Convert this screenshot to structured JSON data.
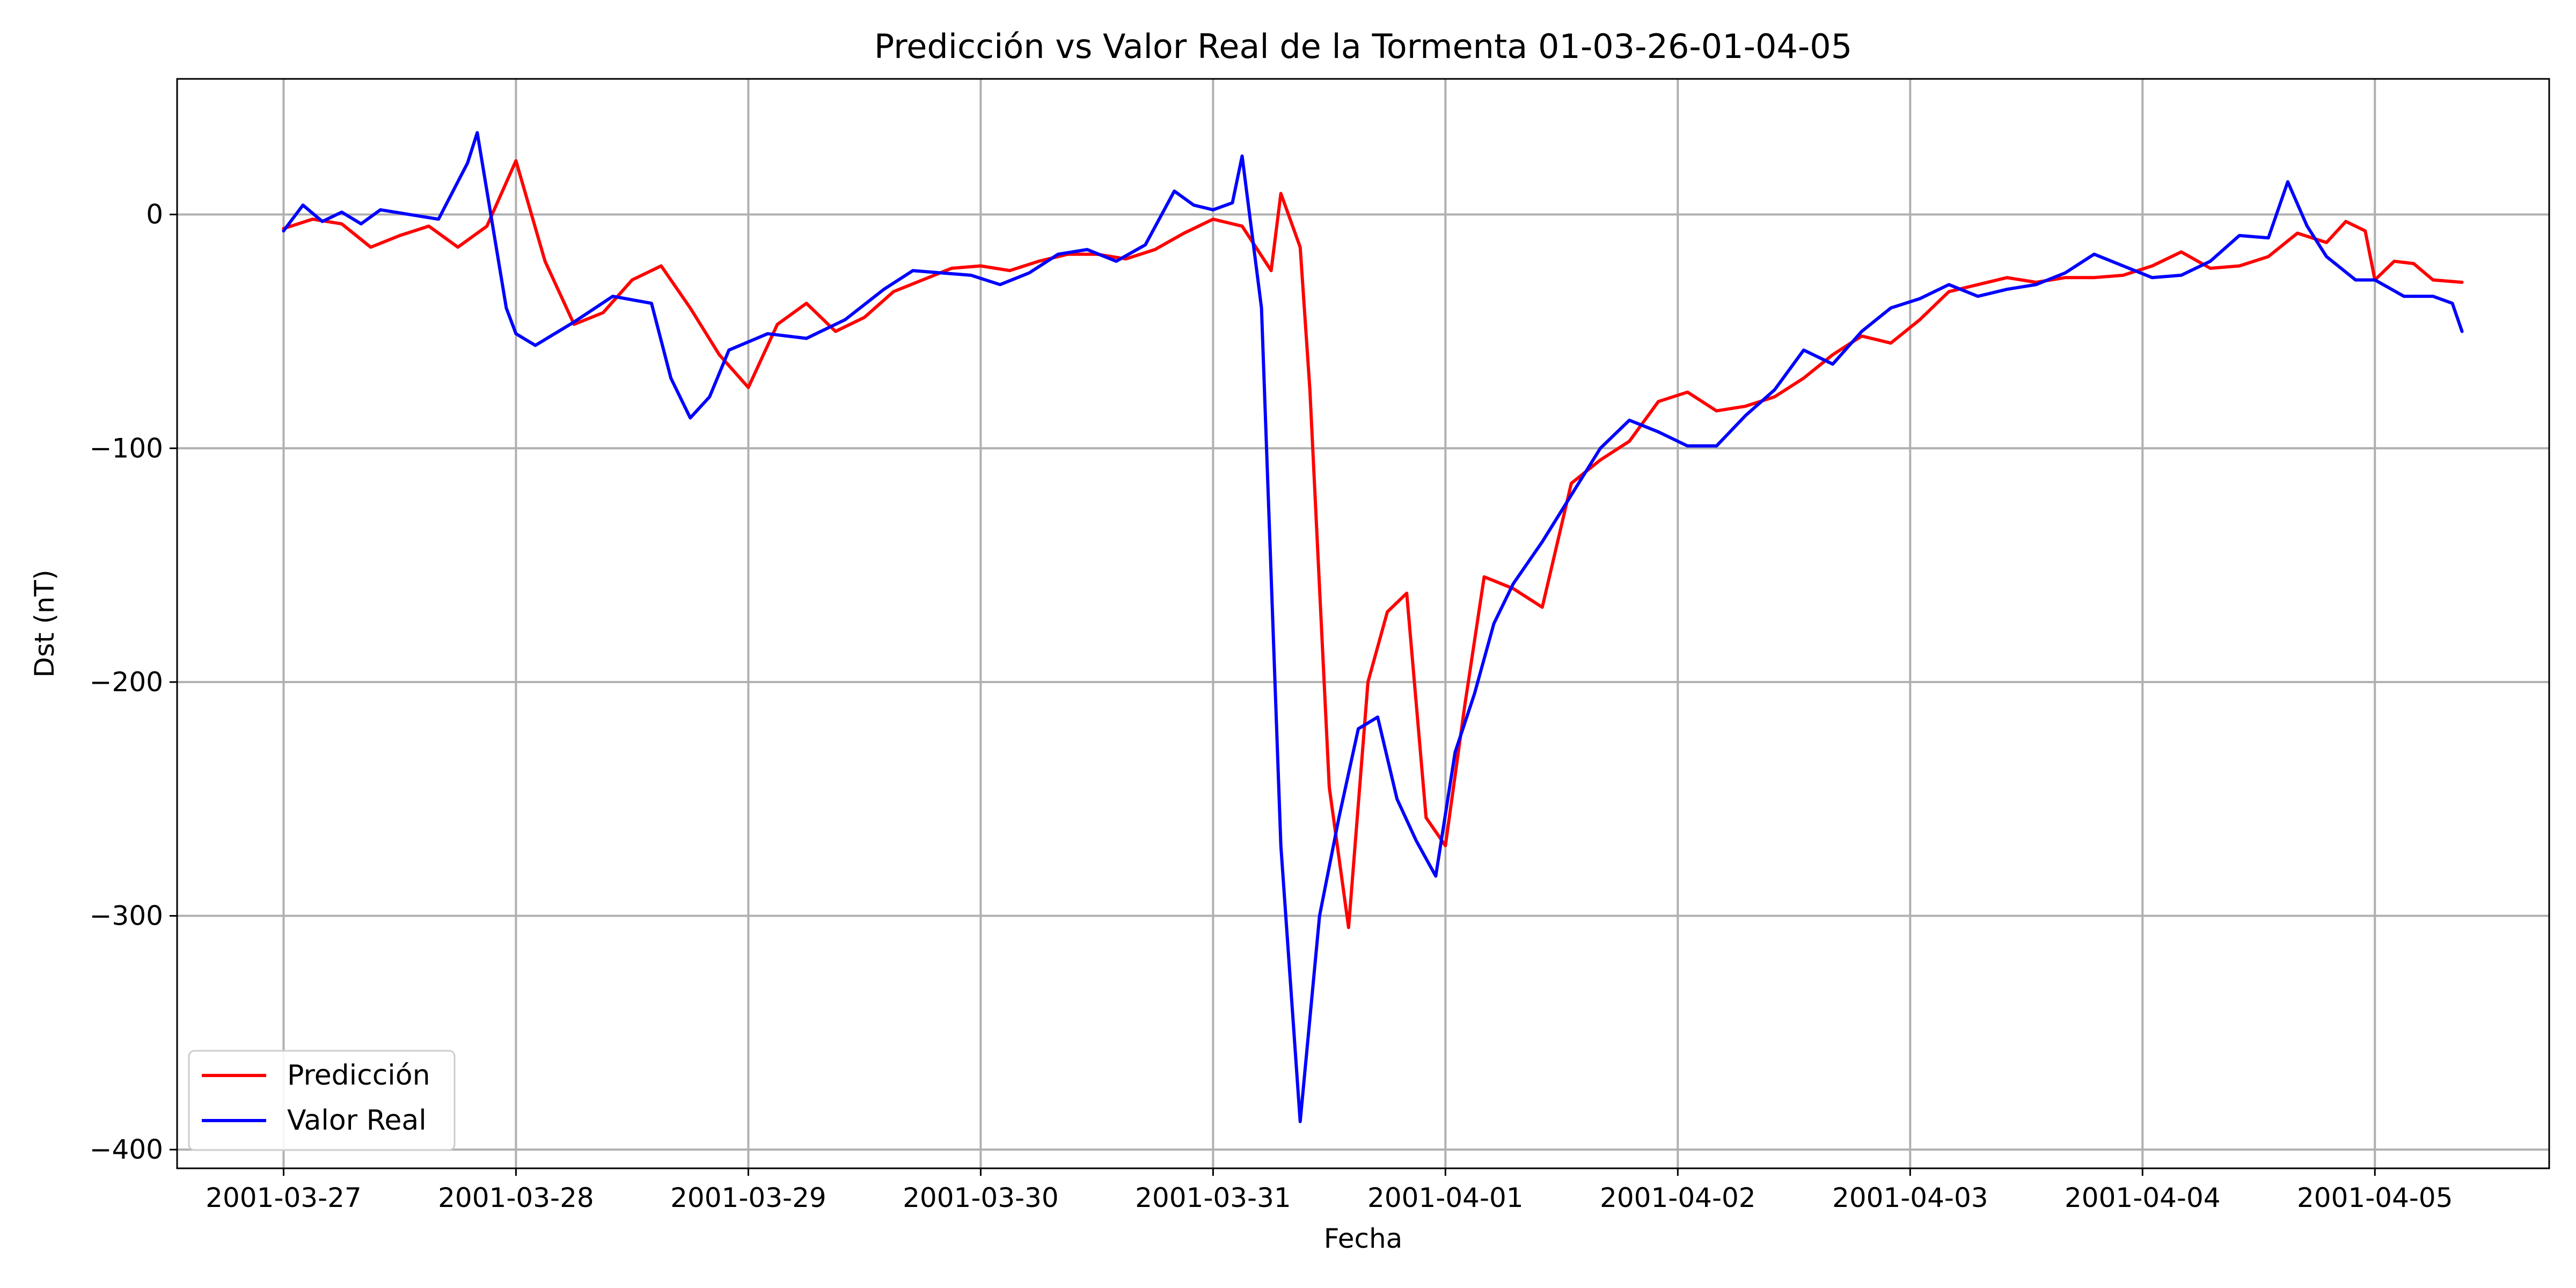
{
  "chart_data": {
    "type": "line",
    "title": "Predicción vs Valor Real de la Tormenta 01-03-26-01-04-05",
    "xlabel": "Fecha",
    "ylabel": "Dst (nT)",
    "x_ticks": [
      "2001-03-27",
      "2001-03-28",
      "2001-03-29",
      "2001-03-30",
      "2001-03-31",
      "2001-04-01",
      "2001-04-02",
      "2001-04-03",
      "2001-04-04",
      "2001-04-05"
    ],
    "y_ticks": [
      0,
      -100,
      -200,
      -300,
      -400
    ],
    "xlim": [
      "2001-03-26T13:00",
      "2001-04-05T18:00"
    ],
    "ylim": [
      -408,
      58
    ],
    "grid": true,
    "legend_position": "lower-left",
    "series": [
      {
        "name": "Predicción",
        "color": "#ff0000",
        "points": [
          [
            "2001-03-27T00:00",
            -6
          ],
          [
            "2001-03-27T03:00",
            -2
          ],
          [
            "2001-03-27T06:00",
            -4
          ],
          [
            "2001-03-27T09:00",
            -14
          ],
          [
            "2001-03-27T12:00",
            -9
          ],
          [
            "2001-03-27T15:00",
            -5
          ],
          [
            "2001-03-27T18:00",
            -14
          ],
          [
            "2001-03-27T21:00",
            -5
          ],
          [
            "2001-03-28T00:00",
            23
          ],
          [
            "2001-03-28T03:00",
            -20
          ],
          [
            "2001-03-28T06:00",
            -47
          ],
          [
            "2001-03-28T09:00",
            -42
          ],
          [
            "2001-03-28T12:00",
            -28
          ],
          [
            "2001-03-28T15:00",
            -22
          ],
          [
            "2001-03-28T18:00",
            -40
          ],
          [
            "2001-03-28T21:00",
            -60
          ],
          [
            "2001-03-29T00:00",
            -74
          ],
          [
            "2001-03-29T03:00",
            -47
          ],
          [
            "2001-03-29T06:00",
            -38
          ],
          [
            "2001-03-29T09:00",
            -50
          ],
          [
            "2001-03-29T12:00",
            -44
          ],
          [
            "2001-03-29T15:00",
            -33
          ],
          [
            "2001-03-29T18:00",
            -28
          ],
          [
            "2001-03-29T21:00",
            -23
          ],
          [
            "2001-03-30T00:00",
            -22
          ],
          [
            "2001-03-30T03:00",
            -24
          ],
          [
            "2001-03-30T06:00",
            -20
          ],
          [
            "2001-03-30T09:00",
            -17
          ],
          [
            "2001-03-30T12:00",
            -17
          ],
          [
            "2001-03-30T15:00",
            -19
          ],
          [
            "2001-03-30T18:00",
            -15
          ],
          [
            "2001-03-30T21:00",
            -8
          ],
          [
            "2001-03-31T00:00",
            -2
          ],
          [
            "2001-03-31T03:00",
            -5
          ],
          [
            "2001-03-31T06:00",
            -24
          ],
          [
            "2001-03-31T07:00",
            9
          ],
          [
            "2001-03-31T09:00",
            -14
          ],
          [
            "2001-03-31T10:00",
            -75
          ],
          [
            "2001-03-31T12:00",
            -245
          ],
          [
            "2001-03-31T14:00",
            -305
          ],
          [
            "2001-03-31T16:00",
            -200
          ],
          [
            "2001-03-31T18:00",
            -170
          ],
          [
            "2001-03-31T20:00",
            -162
          ],
          [
            "2001-03-31T22:00",
            -258
          ],
          [
            "2001-04-01T00:00",
            -270
          ],
          [
            "2001-04-01T02:00",
            -210
          ],
          [
            "2001-04-01T04:00",
            -155
          ],
          [
            "2001-04-01T07:00",
            -160
          ],
          [
            "2001-04-01T10:00",
            -168
          ],
          [
            "2001-04-01T13:00",
            -115
          ],
          [
            "2001-04-01T16:00",
            -105
          ],
          [
            "2001-04-01T19:00",
            -97
          ],
          [
            "2001-04-01T22:00",
            -80
          ],
          [
            "2001-04-02T01:00",
            -76
          ],
          [
            "2001-04-02T04:00",
            -84
          ],
          [
            "2001-04-02T07:00",
            -82
          ],
          [
            "2001-04-02T10:00",
            -78
          ],
          [
            "2001-04-02T13:00",
            -70
          ],
          [
            "2001-04-02T16:00",
            -60
          ],
          [
            "2001-04-02T19:00",
            -52
          ],
          [
            "2001-04-02T22:00",
            -55
          ],
          [
            "2001-04-03T01:00",
            -45
          ],
          [
            "2001-04-03T04:00",
            -33
          ],
          [
            "2001-04-03T07:00",
            -30
          ],
          [
            "2001-04-03T10:00",
            -27
          ],
          [
            "2001-04-03T13:00",
            -29
          ],
          [
            "2001-04-03T16:00",
            -27
          ],
          [
            "2001-04-03T19:00",
            -27
          ],
          [
            "2001-04-03T22:00",
            -26
          ],
          [
            "2001-04-04T01:00",
            -22
          ],
          [
            "2001-04-04T04:00",
            -16
          ],
          [
            "2001-04-04T07:00",
            -23
          ],
          [
            "2001-04-04T10:00",
            -22
          ],
          [
            "2001-04-04T13:00",
            -18
          ],
          [
            "2001-04-04T16:00",
            -8
          ],
          [
            "2001-04-04T19:00",
            -12
          ],
          [
            "2001-04-04T21:00",
            -3
          ],
          [
            "2001-04-04T23:00",
            -7
          ],
          [
            "2001-04-05T00:00",
            -28
          ],
          [
            "2001-04-05T02:00",
            -20
          ],
          [
            "2001-04-05T04:00",
            -21
          ],
          [
            "2001-04-05T06:00",
            -28
          ],
          [
            "2001-04-05T09:00",
            -29
          ]
        ]
      },
      {
        "name": "Valor Real",
        "color": "#0000ff",
        "points": [
          [
            "2001-03-27T00:00",
            -7
          ],
          [
            "2001-03-27T02:00",
            4
          ],
          [
            "2001-03-27T04:00",
            -3
          ],
          [
            "2001-03-27T06:00",
            1
          ],
          [
            "2001-03-27T08:00",
            -4
          ],
          [
            "2001-03-27T10:00",
            2
          ],
          [
            "2001-03-27T13:00",
            0
          ],
          [
            "2001-03-27T16:00",
            -2
          ],
          [
            "2001-03-27T19:00",
            22
          ],
          [
            "2001-03-27T20:00",
            35
          ],
          [
            "2001-03-27T23:00",
            -40
          ],
          [
            "2001-03-28T00:00",
            -51
          ],
          [
            "2001-03-28T02:00",
            -56
          ],
          [
            "2001-03-28T06:00",
            -46
          ],
          [
            "2001-03-28T10:00",
            -35
          ],
          [
            "2001-03-28T14:00",
            -38
          ],
          [
            "2001-03-28T16:00",
            -70
          ],
          [
            "2001-03-28T18:00",
            -87
          ],
          [
            "2001-03-28T20:00",
            -78
          ],
          [
            "2001-03-28T22:00",
            -58
          ],
          [
            "2001-03-29T02:00",
            -51
          ],
          [
            "2001-03-29T06:00",
            -53
          ],
          [
            "2001-03-29T10:00",
            -45
          ],
          [
            "2001-03-29T14:00",
            -32
          ],
          [
            "2001-03-29T17:00",
            -24
          ],
          [
            "2001-03-29T20:00",
            -25
          ],
          [
            "2001-03-29T23:00",
            -26
          ],
          [
            "2001-03-30T02:00",
            -30
          ],
          [
            "2001-03-30T05:00",
            -25
          ],
          [
            "2001-03-30T08:00",
            -17
          ],
          [
            "2001-03-30T11:00",
            -15
          ],
          [
            "2001-03-30T14:00",
            -20
          ],
          [
            "2001-03-30T17:00",
            -13
          ],
          [
            "2001-03-30T20:00",
            10
          ],
          [
            "2001-03-30T22:00",
            4
          ],
          [
            "2001-03-31T00:00",
            2
          ],
          [
            "2001-03-31T02:00",
            5
          ],
          [
            "2001-03-31T03:00",
            25
          ],
          [
            "2001-03-31T05:00",
            -40
          ],
          [
            "2001-03-31T07:00",
            -270
          ],
          [
            "2001-03-31T09:00",
            -388
          ],
          [
            "2001-03-31T11:00",
            -300
          ],
          [
            "2001-03-31T13:00",
            -258
          ],
          [
            "2001-03-31T15:00",
            -220
          ],
          [
            "2001-03-31T17:00",
            -215
          ],
          [
            "2001-03-31T19:00",
            -250
          ],
          [
            "2001-03-31T21:00",
            -268
          ],
          [
            "2001-03-31T23:00",
            -283
          ],
          [
            "2001-04-01T01:00",
            -230
          ],
          [
            "2001-04-01T03:00",
            -205
          ],
          [
            "2001-04-01T05:00",
            -175
          ],
          [
            "2001-04-01T07:00",
            -158
          ],
          [
            "2001-04-01T10:00",
            -140
          ],
          [
            "2001-04-01T13:00",
            -120
          ],
          [
            "2001-04-01T16:00",
            -100
          ],
          [
            "2001-04-01T19:00",
            -88
          ],
          [
            "2001-04-01T22:00",
            -93
          ],
          [
            "2001-04-02T01:00",
            -99
          ],
          [
            "2001-04-02T04:00",
            -99
          ],
          [
            "2001-04-02T07:00",
            -86
          ],
          [
            "2001-04-02T10:00",
            -75
          ],
          [
            "2001-04-02T13:00",
            -58
          ],
          [
            "2001-04-02T16:00",
            -64
          ],
          [
            "2001-04-02T19:00",
            -50
          ],
          [
            "2001-04-02T22:00",
            -40
          ],
          [
            "2001-04-03T01:00",
            -36
          ],
          [
            "2001-04-03T04:00",
            -30
          ],
          [
            "2001-04-03T07:00",
            -35
          ],
          [
            "2001-04-03T10:00",
            -32
          ],
          [
            "2001-04-03T13:00",
            -30
          ],
          [
            "2001-04-03T16:00",
            -25
          ],
          [
            "2001-04-03T19:00",
            -17
          ],
          [
            "2001-04-03T22:00",
            -22
          ],
          [
            "2001-04-04T01:00",
            -27
          ],
          [
            "2001-04-04T04:00",
            -26
          ],
          [
            "2001-04-04T07:00",
            -20
          ],
          [
            "2001-04-04T10:00",
            -9
          ],
          [
            "2001-04-04T13:00",
            -10
          ],
          [
            "2001-04-04T15:00",
            14
          ],
          [
            "2001-04-04T17:00",
            -5
          ],
          [
            "2001-04-04T19:00",
            -18
          ],
          [
            "2001-04-04T22:00",
            -28
          ],
          [
            "2001-04-05T00:00",
            -28
          ],
          [
            "2001-04-05T03:00",
            -35
          ],
          [
            "2001-04-05T06:00",
            -35
          ],
          [
            "2001-04-05T08:00",
            -38
          ],
          [
            "2001-04-05T09:00",
            -50
          ]
        ]
      }
    ]
  }
}
